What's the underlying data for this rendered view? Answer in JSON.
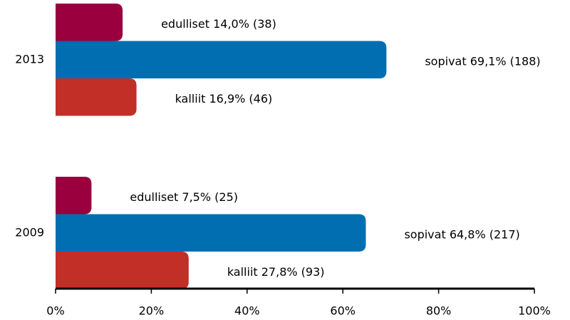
{
  "chart_data": {
    "type": "bar",
    "orientation": "horizontal",
    "categories": [
      "2013",
      "2009"
    ],
    "series": [
      {
        "name": "edulliset",
        "color": "#99003d",
        "values": [
          14.0,
          7.5
        ],
        "value_labels": [
          "edulliset 14,0% (38)",
          "edulliset 7,5% (25)"
        ]
      },
      {
        "name": "sopivat",
        "color": "#006eb0",
        "values": [
          69.1,
          64.8
        ],
        "value_labels": [
          "sopivat 69,1% (188)",
          "sopivat 64,8% (217)"
        ]
      },
      {
        "name": "kalliit",
        "color": "#c22f27",
        "values": [
          16.9,
          27.8
        ],
        "value_labels": [
          "kalliit 16,9% (46)",
          "kalliit 27,8% (93)"
        ]
      }
    ],
    "xlim": [
      0,
      100
    ],
    "xticks": [
      {
        "value": 0,
        "label": "0%"
      },
      {
        "value": 20,
        "label": "20%"
      },
      {
        "value": 40,
        "label": "40%"
      },
      {
        "value": 60,
        "label": "60%"
      },
      {
        "value": 80,
        "label": "80%"
      },
      {
        "value": 100,
        "label": "100%"
      }
    ]
  }
}
